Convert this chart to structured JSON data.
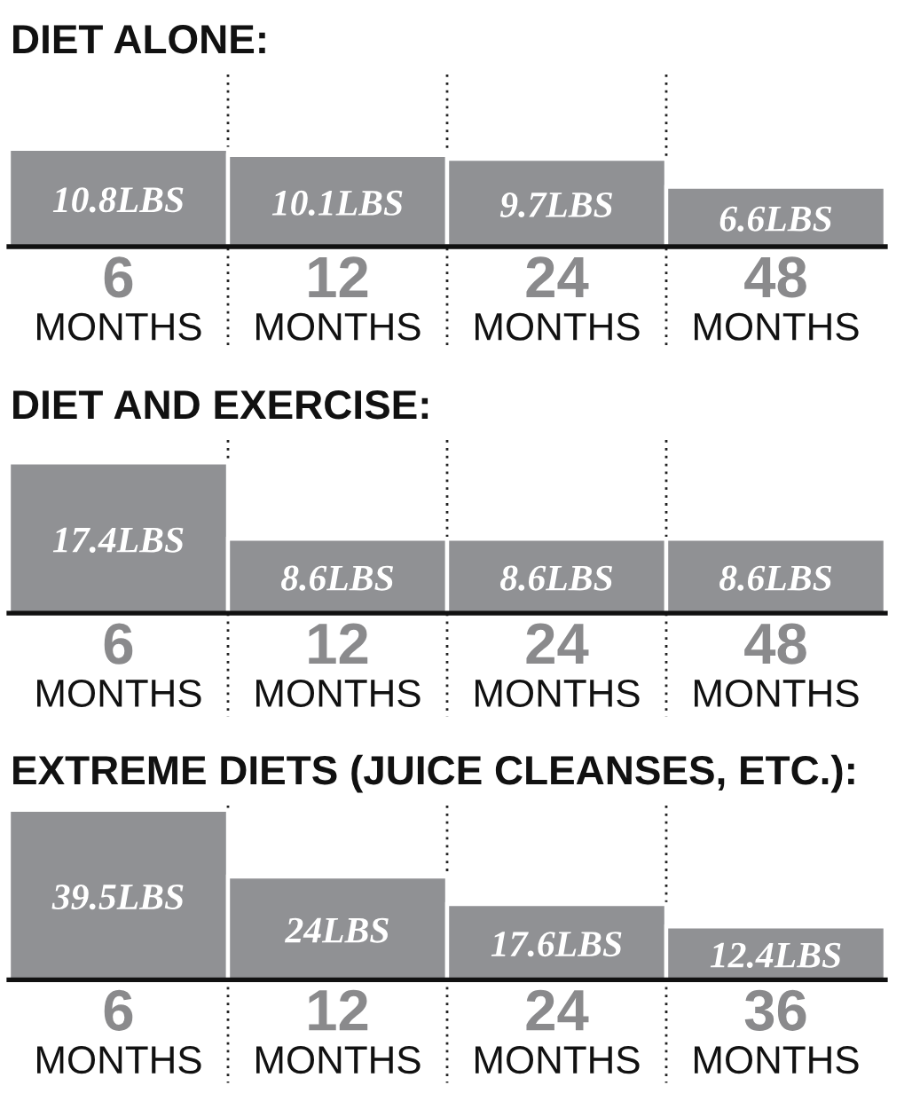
{
  "chart_data": [
    {
      "type": "bar",
      "title": "DIET ALONE:",
      "categories": [
        "6\nMONTHS",
        "12\nMONTHS",
        "24\nMONTHS",
        "48\nMONTHS"
      ],
      "values": [
        10.8,
        10.1,
        9.7,
        6.6
      ],
      "color": "#909194",
      "value_labels": [
        "10.8LBS",
        "10.1LBS",
        "9.7LBS",
        "6.6LBS"
      ],
      "ylim": [
        0,
        19
      ],
      "tick_labels": "x",
      "grid": "x"
    },
    {
      "type": "bar",
      "title": "DIET AND EXERCISE:",
      "categories": [
        "6\nMONTHS",
        "12\nMONTHS",
        "24\nMONTHS",
        "48\nMONTHS"
      ],
      "values": [
        17.4,
        8.6,
        8.6,
        8.6
      ],
      "color": "#909194",
      "value_labels": [
        "17.4LBS",
        "8.6LBS",
        "8.6LBS",
        "8.6LBS"
      ],
      "ylim": [
        0,
        20
      ],
      "tick_labels": "x",
      "grid": "x"
    },
    {
      "type": "bar",
      "title": "EXTREME DIETS (JUICE CLEANSES, ETC.):",
      "categories": [
        "6\nMONTHS",
        "12\nMONTHS",
        "24\nMONTHS",
        "36\nMONTHS"
      ],
      "values": [
        39.5,
        24,
        17.6,
        12.4
      ],
      "color": "#909194",
      "value_labels": [
        "39.5LBS",
        "24LBS",
        "17.6LBS",
        "12.4LBS"
      ],
      "ylim": [
        0,
        40.5
      ],
      "tick_labels": "x",
      "grid": "x"
    }
  ]
}
